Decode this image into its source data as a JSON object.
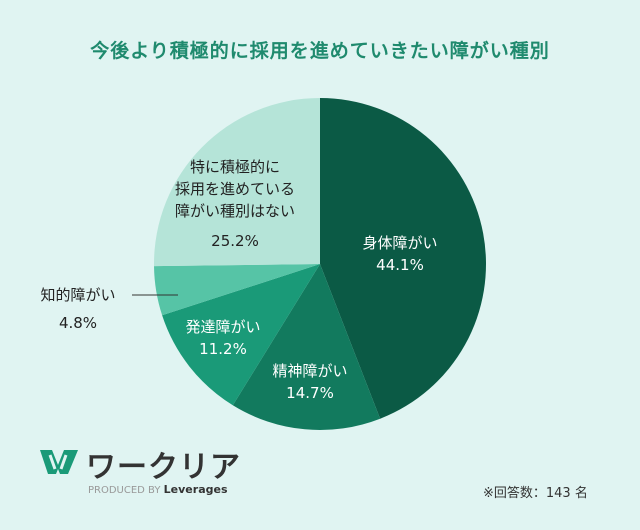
{
  "chart_data": {
    "type": "pie",
    "title": "今後より積極的に採用を進めていきたい障がい種別",
    "start": "top",
    "direction": "clockwise",
    "slices": [
      {
        "label": "身体障がい",
        "value": 44.1,
        "display": "44.1%",
        "color": "#0b5a45"
      },
      {
        "label": "精神障がい",
        "value": 14.7,
        "display": "14.7%",
        "color": "#127a5e"
      },
      {
        "label": "発達障がい",
        "value": 11.2,
        "display": "11.2%",
        "color": "#1a9a78"
      },
      {
        "label": "知的障がい",
        "value": 4.8,
        "display": "4.8%",
        "color": "#56c4a6"
      },
      {
        "label": "特に積極的に採用を進めている障がい種別はない",
        "value": 25.2,
        "display": "25.2%",
        "color": "#b5e4d8"
      }
    ],
    "label_lines": [
      "特に積極的に",
      "採用を進めている",
      "障がい種別はない"
    ]
  },
  "footer": {
    "brand": "ワークリア",
    "produced_by": "PRODUCED BY",
    "company": "Leverages",
    "note": "※回答数：143 名"
  }
}
